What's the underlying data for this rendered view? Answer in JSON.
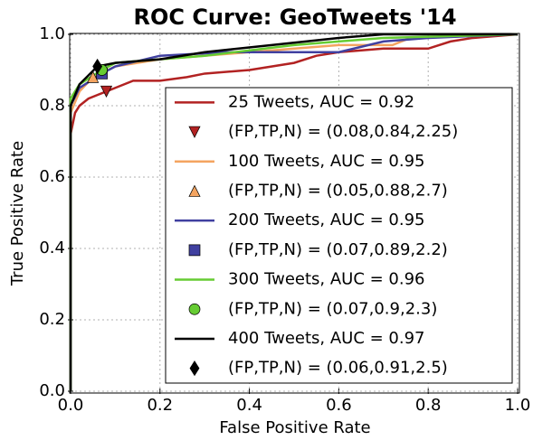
{
  "chart_data": {
    "type": "line",
    "title": "ROC Curve: GeoTweets '14",
    "xlabel": "False Positive Rate",
    "ylabel": "True Positive Rate",
    "xlim": [
      0,
      1
    ],
    "ylim": [
      0,
      1
    ],
    "xticks": [
      {
        "value": 0,
        "label": "0.0"
      },
      0.2,
      0.4,
      0.6,
      0.8,
      {
        "value": 1,
        "label": "1.0"
      }
    ],
    "yticks": [
      {
        "value": 0,
        "label": "0.0"
      },
      0.2,
      0.4,
      0.6,
      0.8,
      {
        "value": 1,
        "label": "1.0"
      }
    ],
    "grid": true,
    "legend": "lower right",
    "series": [
      {
        "name": "25 Tweets,  AUC = 0.92",
        "color": "#b22222",
        "x": [
          0,
          0,
          0.01,
          0.02,
          0.04,
          0.06,
          0.08,
          0.1,
          0.14,
          0.2,
          0.26,
          0.3,
          0.4,
          0.5,
          0.55,
          0.6,
          0.7,
          0.8,
          0.85,
          0.9,
          1
        ],
        "values": [
          0,
          0.72,
          0.78,
          0.8,
          0.82,
          0.83,
          0.84,
          0.85,
          0.87,
          0.87,
          0.88,
          0.89,
          0.9,
          0.92,
          0.94,
          0.95,
          0.96,
          0.96,
          0.98,
          0.99,
          1
        ]
      },
      {
        "name": "100 Tweets,  AUC = 0.95",
        "color": "#f4a460",
        "x": [
          0,
          0,
          0.02,
          0.05,
          0.1,
          0.2,
          0.4,
          0.6,
          0.72,
          0.76,
          1
        ],
        "values": [
          0,
          0.78,
          0.84,
          0.88,
          0.91,
          0.93,
          0.95,
          0.97,
          0.97,
          0.99,
          1
        ]
      },
      {
        "name": "200 Tweets,  AUC = 0.95",
        "color": "#4040a0",
        "x": [
          0,
          0,
          0.02,
          0.07,
          0.1,
          0.2,
          0.35,
          0.6,
          0.7,
          0.8,
          1
        ],
        "values": [
          0,
          0.8,
          0.85,
          0.89,
          0.91,
          0.94,
          0.95,
          0.95,
          0.98,
          0.99,
          1
        ]
      },
      {
        "name": "300 Tweets,  AUC = 0.96",
        "color": "#66cc33",
        "x": [
          0,
          0,
          0.02,
          0.07,
          0.1,
          0.2,
          0.3,
          0.5,
          0.7,
          1
        ],
        "values": [
          0,
          0.82,
          0.86,
          0.9,
          0.92,
          0.93,
          0.94,
          0.97,
          0.99,
          1
        ]
      },
      {
        "name": "400 Tweets,  AUC = 0.97",
        "color": "#000000",
        "x": [
          0,
          0,
          0.02,
          0.06,
          0.1,
          0.2,
          0.3,
          0.45,
          0.6,
          0.7,
          1
        ],
        "values": [
          0,
          0.8,
          0.86,
          0.91,
          0.92,
          0.93,
          0.95,
          0.97,
          0.99,
          1,
          1
        ]
      }
    ],
    "points": [
      {
        "name": "(FP,TP,N) = (0.08,0.84,2.25)",
        "marker": "triangle-down",
        "color": "#b22222",
        "x": 0.08,
        "y": 0.84
      },
      {
        "name": "(FP,TP,N) = (0.05,0.88,2.7)",
        "marker": "triangle-up",
        "color": "#f4a460",
        "x": 0.05,
        "y": 0.88
      },
      {
        "name": "(FP,TP,N) = (0.07,0.89,2.2)",
        "marker": "square",
        "color": "#4040a0",
        "x": 0.07,
        "y": 0.89
      },
      {
        "name": "(FP,TP,N) = (0.07,0.9,2.3)",
        "marker": "circle",
        "color": "#66cc33",
        "x": 0.07,
        "y": 0.9
      },
      {
        "name": "(FP,TP,N) = (0.06,0.91,2.5)",
        "marker": "diamond",
        "color": "#000000",
        "x": 0.06,
        "y": 0.91
      }
    ]
  }
}
